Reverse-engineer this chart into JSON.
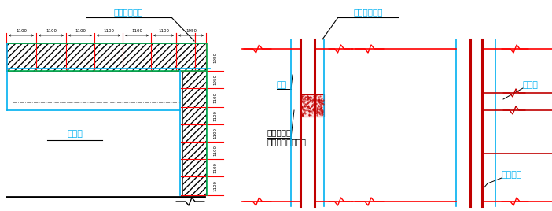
{
  "bg_color": "#ffffff",
  "cyan": "#00b0f0",
  "red": "#ff0000",
  "dark_red": "#c00000",
  "green": "#00b050",
  "black": "#000000",
  "gray": "#808080",
  "labels": {
    "hunningtu_left": "混凝土传力带",
    "hunningtu_right": "混凝土传力带",
    "waiqiang": "外墙",
    "weihuzhang": "围护桩",
    "weihuzhu_main": "围护桩主筋",
    "weihuzhu_weld": "与传力带钢筋焊接",
    "zhongloban": "中楼板",
    "ditie_waiqiang": "地铁外墙"
  },
  "dim_h_labels": [
    "1100",
    "1100",
    "1100",
    "1100",
    "1100",
    "1100",
    "1950"
  ],
  "dim_v_labels": [
    "1950",
    "1100",
    "1100",
    "1100",
    "1100",
    "1100",
    "1100"
  ]
}
